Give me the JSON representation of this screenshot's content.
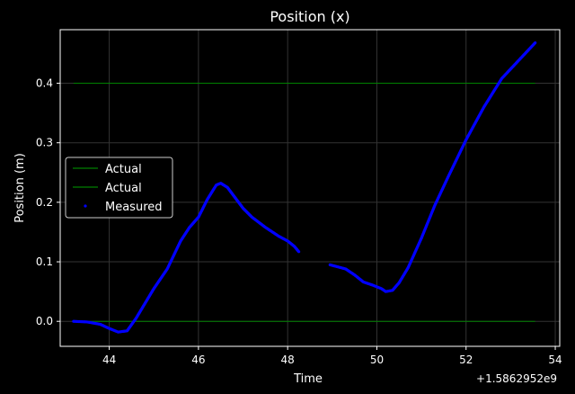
{
  "colors": {
    "background": "#000000",
    "grid": "#333333",
    "actual": "#008000",
    "measured": "#0000ff",
    "text": "#ffffff"
  },
  "chart_data": {
    "type": "line",
    "title": "Position (x)",
    "xlabel": "Time",
    "ylabel": "Position (m)",
    "x_offset_label": "+1.5862952e9",
    "xlim": [
      42.9,
      54.1
    ],
    "ylim": [
      -0.042,
      0.49
    ],
    "x_ticks": [
      44,
      46,
      48,
      50,
      52,
      54
    ],
    "y_ticks": [
      0.0,
      0.1,
      0.2,
      0.3,
      0.4
    ],
    "x_tick_labels": [
      "44",
      "46",
      "48",
      "50",
      "52",
      "54"
    ],
    "y_tick_labels": [
      "0.0",
      "0.1",
      "0.2",
      "0.3",
      "0.4"
    ],
    "grid": true,
    "legend_position": "center-left",
    "series": [
      {
        "name": "Actual",
        "kind": "line",
        "color": "#008000",
        "x": [
          43.2,
          53.55
        ],
        "y": [
          0.4,
          0.4
        ]
      },
      {
        "name": "Actual",
        "kind": "line",
        "color": "#008000",
        "x": [
          43.2,
          53.55
        ],
        "y": [
          0.0,
          0.0
        ]
      },
      {
        "name": "Measured",
        "kind": "points",
        "color": "#0000ff",
        "segments": [
          {
            "x": [
              43.2,
              43.5,
              43.8,
              44.0,
              44.2,
              44.4,
              44.6,
              44.8,
              45.0,
              45.3,
              45.6,
              45.8,
              46.0,
              46.2,
              46.4,
              46.5,
              46.65,
              46.8,
              47.0,
              47.2,
              47.5,
              47.8,
              48.0,
              48.15,
              48.25
            ],
            "y": [
              0.0,
              -0.001,
              -0.005,
              -0.012,
              -0.018,
              -0.016,
              0.005,
              0.03,
              0.055,
              0.088,
              0.135,
              0.158,
              0.175,
              0.205,
              0.229,
              0.232,
              0.225,
              0.21,
              0.19,
              0.175,
              0.158,
              0.143,
              0.135,
              0.126,
              0.117
            ]
          },
          {
            "x": [
              48.95,
              49.1,
              49.3,
              49.5,
              49.7,
              49.9,
              50.1,
              50.2,
              50.35,
              50.5,
              50.7,
              51.0,
              51.3,
              51.6,
              52.0,
              52.4,
              52.8,
              53.2,
              53.55
            ],
            "y": [
              0.095,
              0.092,
              0.088,
              0.078,
              0.066,
              0.061,
              0.055,
              0.05,
              0.052,
              0.065,
              0.09,
              0.14,
              0.195,
              0.243,
              0.305,
              0.36,
              0.408,
              0.44,
              0.468
            ]
          }
        ]
      }
    ]
  }
}
